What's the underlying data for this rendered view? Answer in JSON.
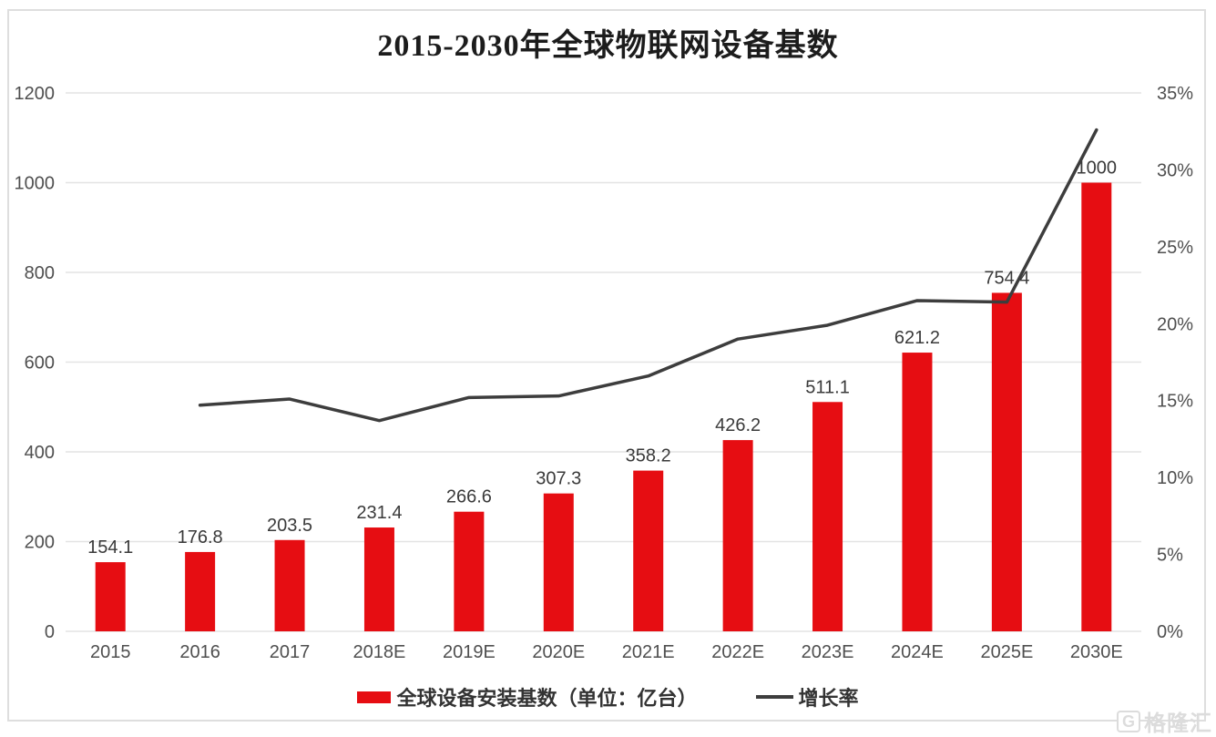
{
  "chart_data": {
    "type": "bar",
    "title": "2015-2030年全球物联网设备基数",
    "categories": [
      "2015",
      "2016",
      "2017",
      "2018E",
      "2019E",
      "2020E",
      "2021E",
      "2022E",
      "2023E",
      "2024E",
      "2025E",
      "2030E"
    ],
    "series": [
      {
        "name": "全球设备安装基数（单位：亿台）",
        "type": "bar",
        "axis": "left",
        "color": "#e60d12",
        "values": [
          154.1,
          176.8,
          203.5,
          231.4,
          266.6,
          307.3,
          358.2,
          426.2,
          511.1,
          621.2,
          754.4,
          1000
        ],
        "labels": [
          "154.1",
          "176.8",
          "203.5",
          "231.4",
          "266.6",
          "307.3",
          "358.2",
          "426.2",
          "511.1",
          "621.2",
          "754.4",
          "1000"
        ]
      },
      {
        "name": "增长率",
        "type": "line",
        "axis": "right",
        "color": "#3d3d3d",
        "values": [
          null,
          14.7,
          15.1,
          13.7,
          15.2,
          15.3,
          16.6,
          19.0,
          19.9,
          21.5,
          21.4,
          32.6
        ]
      }
    ],
    "y_axis_left": {
      "ticks": [
        "0",
        "200",
        "400",
        "600",
        "800",
        "1000",
        "1200"
      ],
      "min": 0,
      "max": 1200
    },
    "y_axis_right": {
      "ticks": [
        "0%",
        "5%",
        "10%",
        "15%",
        "20%",
        "25%",
        "30%",
        "35%"
      ],
      "min": 0,
      "max": 35
    },
    "grid": true,
    "legend_position": "bottom"
  },
  "colors": {
    "bar": "#e60d12",
    "line": "#3d3d3d",
    "grid": "#e4e4e4",
    "axis_text": "#4f4f4f",
    "value_label": "#3a3a3a",
    "frame_border": "#dedede"
  },
  "watermark": {
    "logo": "G",
    "text": "格隆汇"
  }
}
